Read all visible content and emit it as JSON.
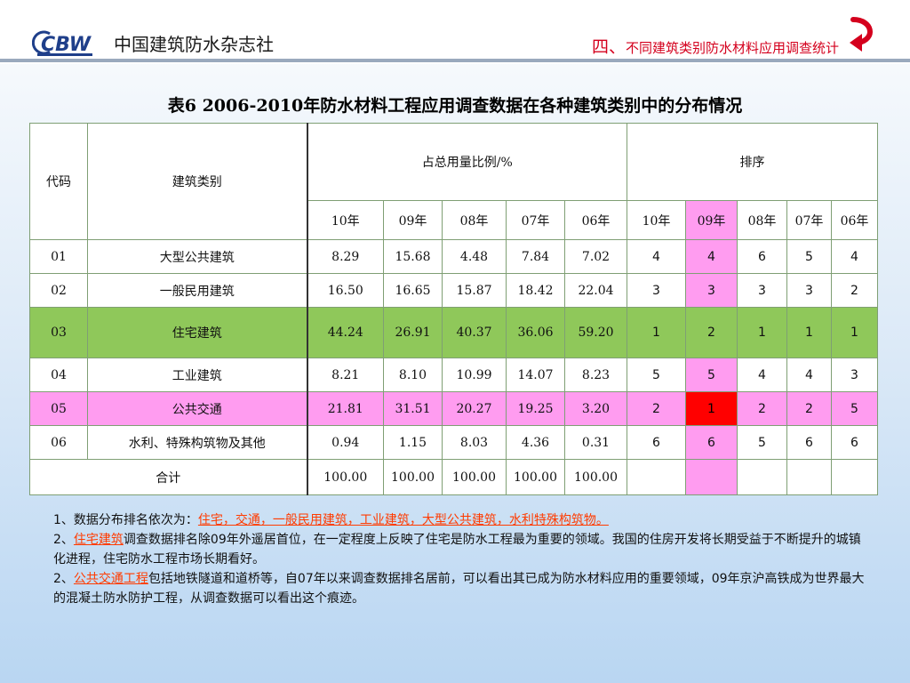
{
  "header": {
    "logo_mark": "CBW",
    "org_name": "中国建筑防水杂志社",
    "section_num": "四、",
    "section_title": "不同建筑类别防水材料应用调查统计"
  },
  "table_title": "表6 2006-2010年防水材料工程应用调查数据在各种建筑类别中的分布情况",
  "table": {
    "col_code": "代码",
    "col_category": "建筑类别",
    "group_ratio": "占总用量比例/%",
    "group_rank": "排序",
    "years_ratio": [
      "10年",
      "09年",
      "08年",
      "07年",
      "06年"
    ],
    "years_rank": [
      "10年",
      "09年",
      "08年",
      "07年",
      "06年"
    ],
    "rows": [
      {
        "code": "01",
        "name": "大型公共建筑",
        "ratio": [
          "8.29",
          "15.68",
          "4.48",
          "7.84",
          "7.02"
        ],
        "rank": [
          "4",
          "4",
          "6",
          "5",
          "4"
        ]
      },
      {
        "code": "02",
        "name": "一般民用建筑",
        "ratio": [
          "16.50",
          "16.65",
          "15.87",
          "18.42",
          "22.04"
        ],
        "rank": [
          "3",
          "3",
          "3",
          "3",
          "2"
        ]
      },
      {
        "code": "03",
        "name": "住宅建筑",
        "ratio": [
          "44.24",
          "26.91",
          "40.37",
          "36.06",
          "59.20"
        ],
        "rank": [
          "1",
          "2",
          "1",
          "1",
          "1"
        ]
      },
      {
        "code": "04",
        "name": "工业建筑",
        "ratio": [
          "8.21",
          "8.10",
          "10.99",
          "14.07",
          "8.23"
        ],
        "rank": [
          "5",
          "5",
          "4",
          "4",
          "3"
        ]
      },
      {
        "code": "05",
        "name": "公共交通",
        "ratio": [
          "21.81",
          "31.51",
          "20.27",
          "19.25",
          "3.20"
        ],
        "rank": [
          "2",
          "1",
          "2",
          "2",
          "5"
        ]
      },
      {
        "code": "06",
        "name": "水利、特殊构筑物及其他",
        "ratio": [
          "0.94",
          "1.15",
          "8.03",
          "4.36",
          "0.31"
        ],
        "rank": [
          "6",
          "6",
          "5",
          "6",
          "6"
        ]
      }
    ],
    "total_label": "合计",
    "total_ratio": [
      "100.00",
      "100.00",
      "100.00",
      "100.00",
      "100.00"
    ]
  },
  "notes": {
    "n1_prefix": "1、数据分布排名依次为：",
    "n1_link": "住宅，交通，一般民用建筑，工业建筑，大型公共建筑，水利特殊构筑物。",
    "n2_prefix": "2、",
    "n2_link": "住宅建筑",
    "n2_text": "调查数据排名除09年外遥居首位，在一定程度上反映了住宅是防水工程最为重要的领域。我国的住房开发将长期受益于不断提升的城镇化进程，住宅防水工程市场长期看好。",
    "n3_prefix": "2、",
    "n3_link": "公共交通工程",
    "n3_text": "包括地铁隧道和道桥等，自07年以来调查数据排名居前，可以看出其已成为防水材料应用的重要领域，09年京沪高铁成为世界最大的混凝土防水防护工程，从调查数据可以看出这个痕迹。"
  },
  "colors": {
    "green_row": "#8fc85a",
    "pink_row": "#ff9cf0",
    "red_cell": "#ff0000",
    "title_red": "#d4001d",
    "link_orange": "#ff3b00"
  },
  "icons": [
    "cbw-logo",
    "return-arrow-icon"
  ]
}
